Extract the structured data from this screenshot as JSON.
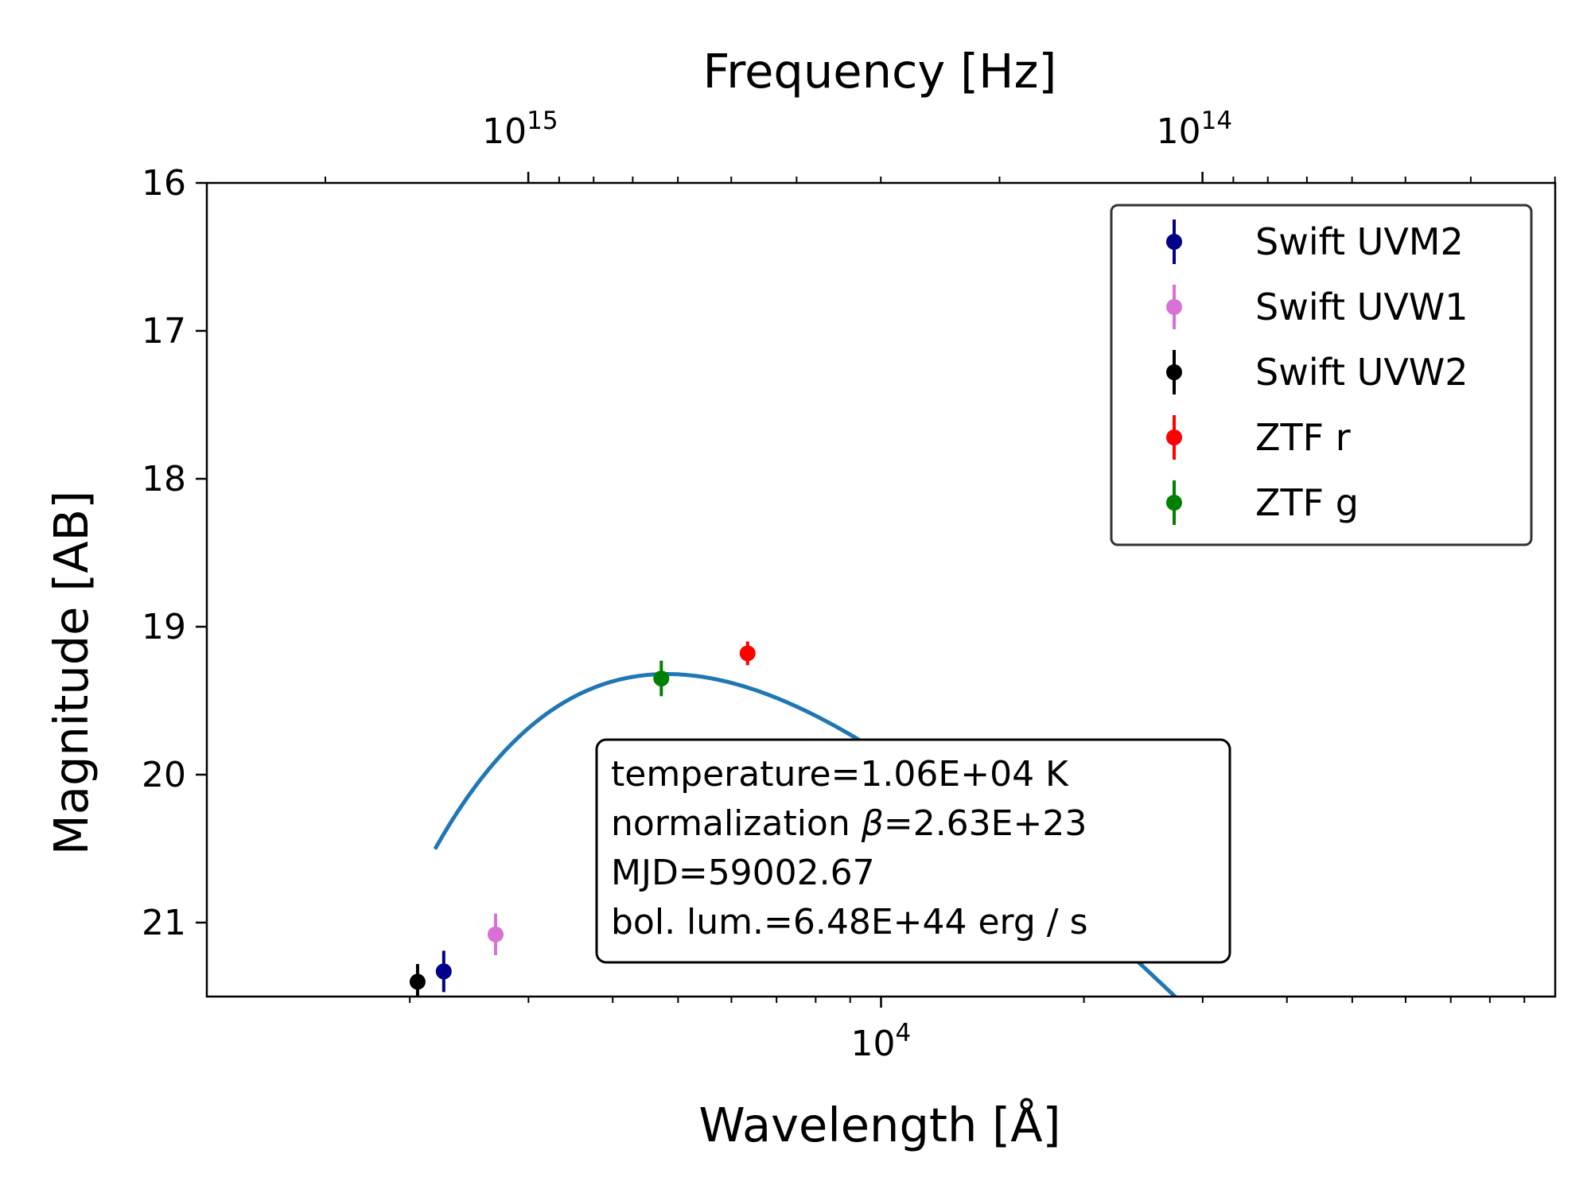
{
  "chart_data": {
    "type": "scatter",
    "title": "",
    "xlabel": "Wavelength [Å]",
    "ylabel": "Magnitude [AB]",
    "x2label": "Frequency [Hz]",
    "xscale": "log",
    "x2scale": "log",
    "xlim": [
      1000,
      100000
    ],
    "ylim": [
      21.5,
      16
    ],
    "y_inverted": true,
    "grid": false,
    "legend_position": "top-right",
    "y_ticks": [
      "16",
      "17",
      "18",
      "19",
      "20",
      "21"
    ],
    "x_major_ticks": [
      {
        "value": 10000,
        "base": "10",
        "exp": "4"
      }
    ],
    "x2_major_ticks": [
      {
        "value": 1000000000000000.0,
        "base": "10",
        "exp": "15"
      },
      {
        "value": 100000000000000.0,
        "base": "10",
        "exp": "14"
      }
    ],
    "series": [
      {
        "name": "Swift UVM2",
        "color": "#00008b",
        "x": [
          2246
        ],
        "y": [
          21.33
        ],
        "yerr": [
          0.14
        ]
      },
      {
        "name": "Swift UVW1",
        "color": "#da70d6",
        "x": [
          2681
        ],
        "y": [
          21.08
        ],
        "yerr": [
          0.14
        ]
      },
      {
        "name": "Swift UVW2",
        "color": "#000000",
        "x": [
          2054
        ],
        "y": [
          21.4
        ],
        "yerr": [
          0.12
        ]
      },
      {
        "name": "ZTF r",
        "color": "#ff0000",
        "x": [
          6340
        ],
        "y": [
          19.18
        ],
        "yerr": [
          0.08
        ]
      },
      {
        "name": "ZTF g",
        "color": "#008000",
        "x": [
          4722
        ],
        "y": [
          19.35
        ],
        "yerr": [
          0.12
        ]
      }
    ],
    "model": {
      "color": "#1f77b4",
      "temperature_K": 10600,
      "peak_magnitude": 19.32,
      "x_range": [
        2180,
        30000
      ]
    },
    "annotation": {
      "position": "center",
      "lines": [
        {
          "pre": "temperature=1.06E+04 K",
          "sym": "",
          "post": ""
        },
        {
          "pre": "normalization ",
          "sym": "β",
          "post": "=2.63E+23"
        },
        {
          "pre": "MJD=59002.67",
          "sym": "",
          "post": ""
        },
        {
          "pre": "bol. lum.=6.48E+44 erg / s",
          "sym": "",
          "post": ""
        }
      ]
    }
  }
}
